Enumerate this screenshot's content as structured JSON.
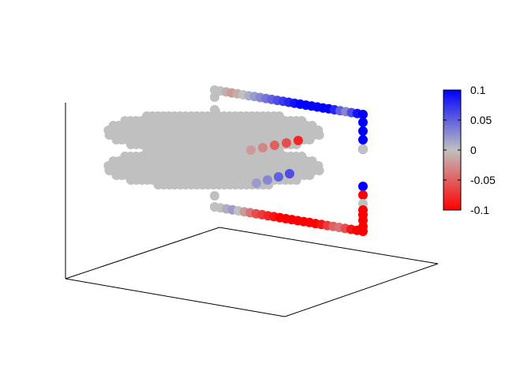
{
  "chart_data": {
    "type": "scatter",
    "title": "",
    "xlabel": "",
    "ylabel": "",
    "zlabel": "",
    "grid": false,
    "tick_labels_axes": [],
    "colorbar": {
      "range": [
        -0.1,
        0.1
      ],
      "tick_values": [
        0.1,
        0.05,
        0,
        -0.05,
        -0.1
      ],
      "tick_labels": [
        "0.1",
        "0.05",
        "0",
        "-0.05",
        "-0.1"
      ],
      "colors": {
        "max": "#0000ff",
        "mid": "#c0c0c0",
        "min": "#ff0000"
      },
      "placement": "right"
    },
    "series": [
      {
        "description_values": "frame top edge, value along edge",
        "values": [
          0.0,
          0.0,
          -0.01,
          -0.02,
          -0.01,
          0.0,
          0.01,
          0.02,
          0.03,
          0.04,
          0.05,
          0.06,
          0.07,
          0.08,
          0.09,
          0.1,
          0.1,
          0.1,
          0.1,
          0.1,
          0.1,
          0.08,
          0.05,
          0.03,
          0.06,
          0.09,
          0.1
        ]
      },
      {
        "values": [
          0.0,
          0.0,
          0.01,
          0.02,
          0.0,
          -0.02,
          -0.04,
          -0.06,
          -0.07,
          -0.08,
          -0.09,
          -0.1,
          -0.1,
          -0.1,
          -0.1,
          -0.1,
          -0.1,
          -0.1,
          -0.09,
          -0.07,
          -0.05,
          -0.04,
          -0.06,
          -0.09,
          -0.1,
          -0.1
        ]
      },
      {
        "values": [
          0.1,
          0.1,
          0.1,
          0.1,
          0.0,
          0.1,
          -0.1,
          0.0,
          -0.1,
          -0.1,
          -0.1,
          -0.1
        ]
      }
    ],
    "disks": {
      "color": "#c0c0c0",
      "inner_band_values": [
        -0.02,
        -0.03,
        -0.05,
        -0.06,
        -0.08,
        0.02,
        0.03,
        0.05,
        0.06
      ]
    }
  }
}
